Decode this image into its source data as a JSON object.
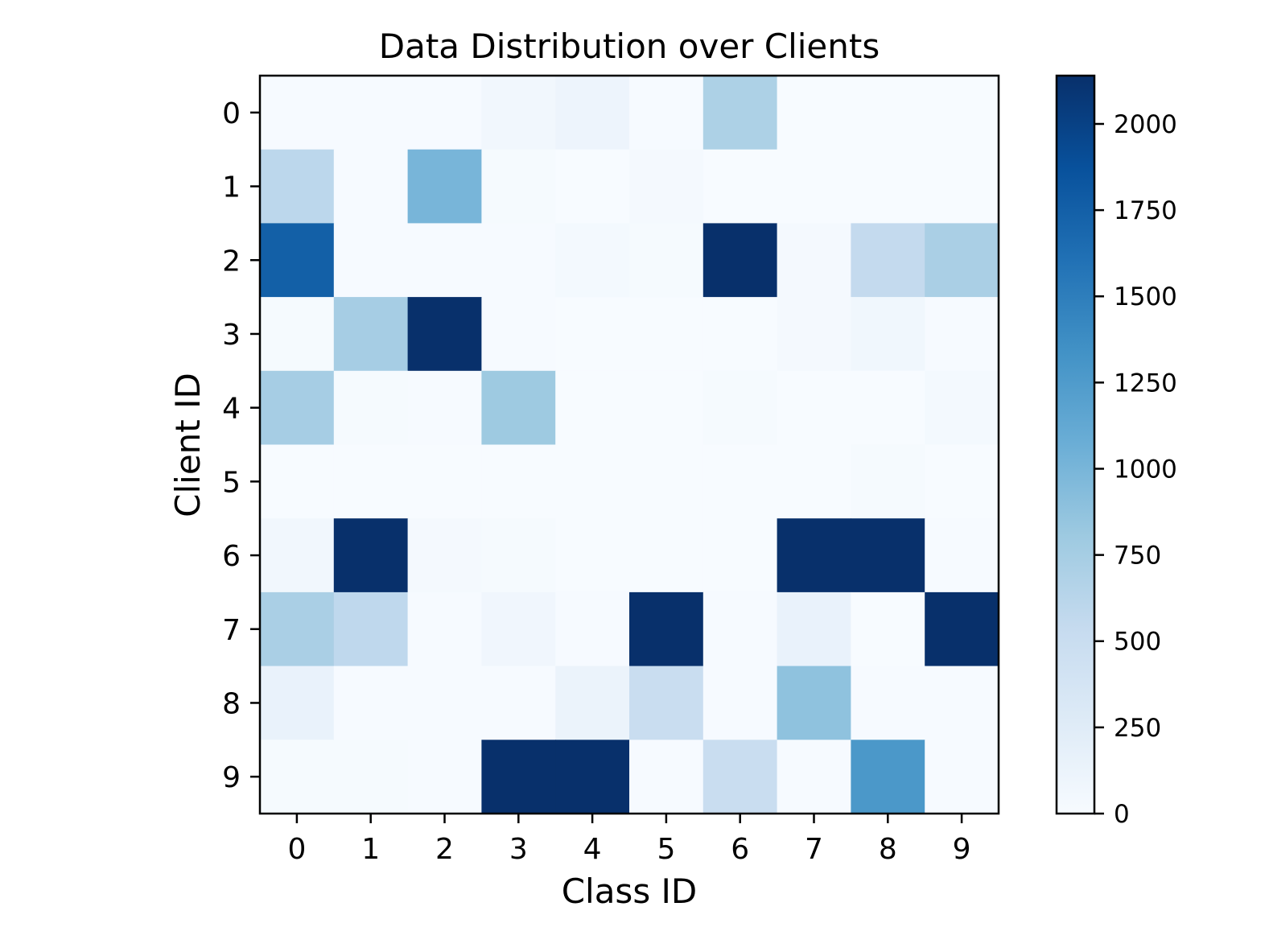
{
  "chart_data": {
    "type": "heatmap",
    "title": "Data Distribution over Clients",
    "xlabel": "Class ID",
    "ylabel": "Client ID",
    "x_categories": [
      "0",
      "1",
      "2",
      "3",
      "4",
      "5",
      "6",
      "7",
      "8",
      "9"
    ],
    "y_categories": [
      "0",
      "1",
      "2",
      "3",
      "4",
      "5",
      "6",
      "7",
      "8",
      "9"
    ],
    "values": [
      [
        10,
        10,
        10,
        60,
        110,
        10,
        700,
        0,
        0,
        0
      ],
      [
        600,
        10,
        1000,
        20,
        0,
        30,
        0,
        0,
        0,
        0
      ],
      [
        1750,
        10,
        10,
        10,
        40,
        20,
        2140,
        30,
        550,
        720
      ],
      [
        20,
        750,
        2140,
        10,
        0,
        0,
        0,
        30,
        70,
        10
      ],
      [
        750,
        20,
        10,
        800,
        0,
        0,
        20,
        0,
        0,
        40
      ],
      [
        0,
        0,
        0,
        0,
        0,
        0,
        0,
        0,
        20,
        0
      ],
      [
        60,
        2140,
        30,
        20,
        0,
        0,
        0,
        2140,
        2140,
        10
      ],
      [
        720,
        580,
        10,
        80,
        10,
        2140,
        10,
        150,
        0,
        2140
      ],
      [
        150,
        10,
        10,
        10,
        130,
        500,
        10,
        880,
        10,
        10
      ],
      [
        20,
        20,
        10,
        2140,
        2140,
        10,
        500,
        10,
        1280,
        10
      ]
    ],
    "colormap": "Blues",
    "vmin": 0,
    "vmax": 2140,
    "colorbar": {
      "ticks": [
        0,
        250,
        500,
        750,
        1000,
        1250,
        1500,
        1750,
        2000
      ],
      "tick_labels": [
        "0",
        "250",
        "500",
        "750",
        "1000",
        "1250",
        "1500",
        "1750",
        "2000"
      ]
    },
    "colormap_stops": [
      "#f7fbff",
      "#deebf7",
      "#c6dbef",
      "#9ecae1",
      "#6baed6",
      "#4292c6",
      "#2171b5",
      "#08519c",
      "#08306b"
    ]
  }
}
